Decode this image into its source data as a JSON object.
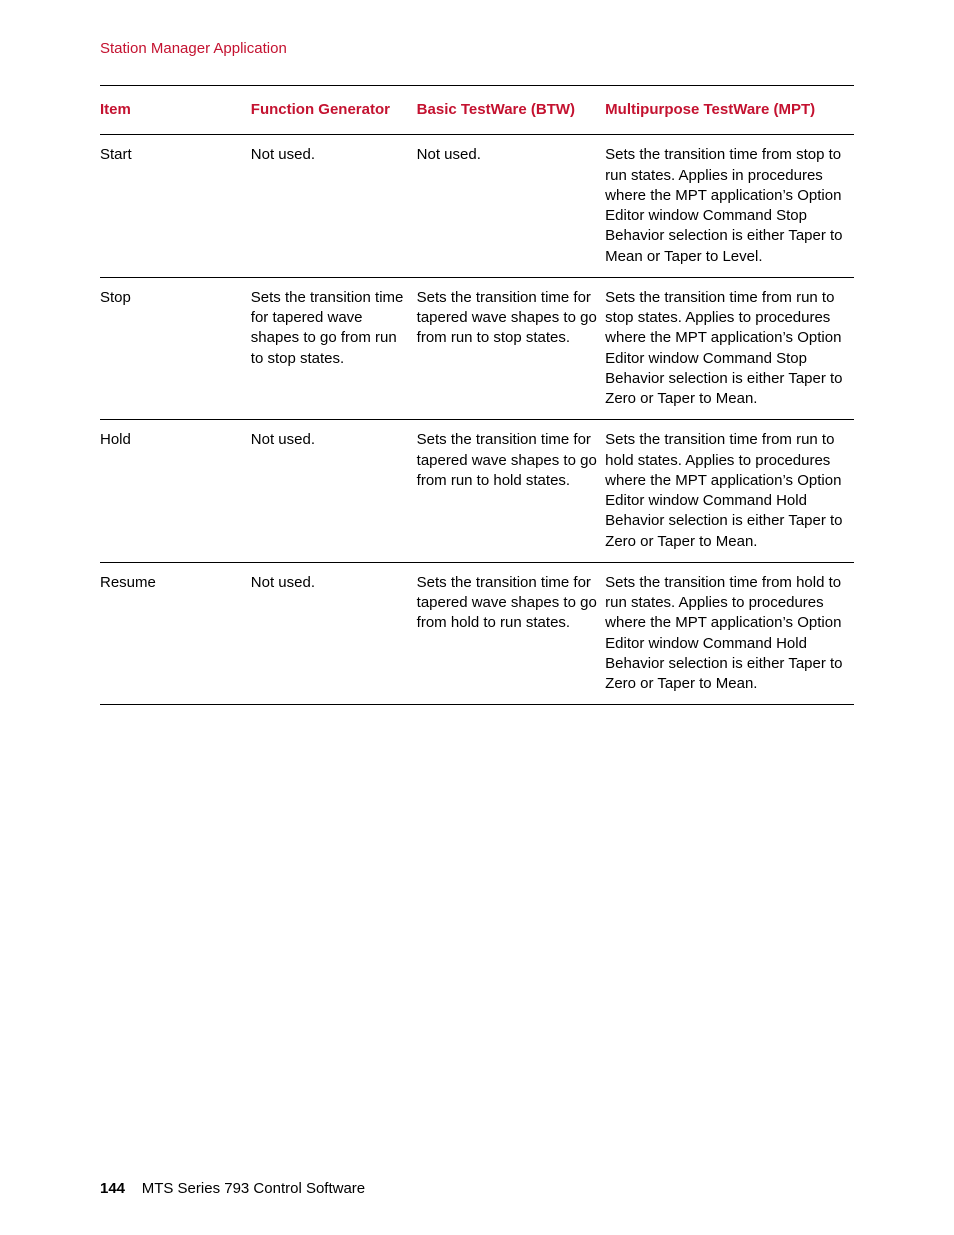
{
  "section_title": "Station Manager Application",
  "colors": {
    "accent": "#c41230",
    "text": "#000000",
    "background": "#ffffff",
    "border": "#000000"
  },
  "table": {
    "columns": [
      {
        "key": "item",
        "label": "Item"
      },
      {
        "key": "fg",
        "label": "Function Generator"
      },
      {
        "key": "btw",
        "label": "Basic TestWare (BTW)"
      },
      {
        "key": "mpt",
        "label": "Multipurpose TestWare (MPT)"
      }
    ],
    "rows": [
      {
        "item": "Start",
        "fg": "Not used.",
        "btw": "Not used.",
        "mpt": "Sets the transition time from stop to run states. Applies in procedures where the MPT application’s Option Editor window Command Stop Behavior selection is either Taper to Mean or Taper to Level."
      },
      {
        "item": "Stop",
        "fg": "Sets the transition time for tapered wave shapes to go from run to stop states.",
        "btw": "Sets the transition time for tapered wave shapes to go from run to stop states.",
        "mpt": "Sets the transition time from run to stop states. Applies to procedures where the MPT application’s Option Editor window Command Stop Behavior selection is either Taper to Zero or Taper to Mean."
      },
      {
        "item": "Hold",
        "fg": "Not used.",
        "btw": "Sets the transition time for tapered wave shapes to go from run to hold states.",
        "mpt": "Sets the transition time from run to hold states. Applies to procedures where the MPT application’s Option Editor window Command Hold Behavior selection is either Taper to Zero or Taper to Mean."
      },
      {
        "item": "Resume",
        "fg": "Not used.",
        "btw": "Sets the transition time for tapered wave shapes to go from hold to run states.",
        "mpt": "Sets the transition time from hold to run states. Applies to procedures where the MPT application’s Option Editor window Command Hold Behavior selection is either Taper to Zero or Taper to Mean."
      }
    ]
  },
  "footer": {
    "page_number": "144",
    "doc_title": "MTS Series 793 Control Software"
  }
}
